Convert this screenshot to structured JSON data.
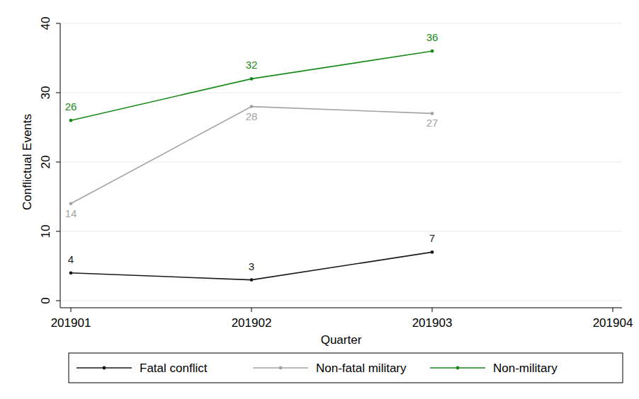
{
  "chart_data": {
    "type": "line",
    "x_label": "Quarter",
    "y_label": "Conflictual Events",
    "categories": [
      "201901",
      "201902",
      "201903",
      "201904"
    ],
    "series": [
      {
        "name": "Fatal conflict",
        "color": "#1a1a1a",
        "values": [
          4,
          3,
          7,
          null
        ]
      },
      {
        "name": "Non-fatal military",
        "color": "#a3a3a3",
        "values": [
          14,
          28,
          27,
          null
        ]
      },
      {
        "name": "Non-military",
        "color": "#1a8a1a",
        "values": [
          26,
          32,
          36,
          null
        ]
      }
    ],
    "ylim": [
      0,
      40
    ],
    "yticks": [
      0,
      10,
      20,
      30,
      40
    ],
    "grid": true,
    "legend": "bottom",
    "data_labels": true,
    "marker": "circle"
  }
}
